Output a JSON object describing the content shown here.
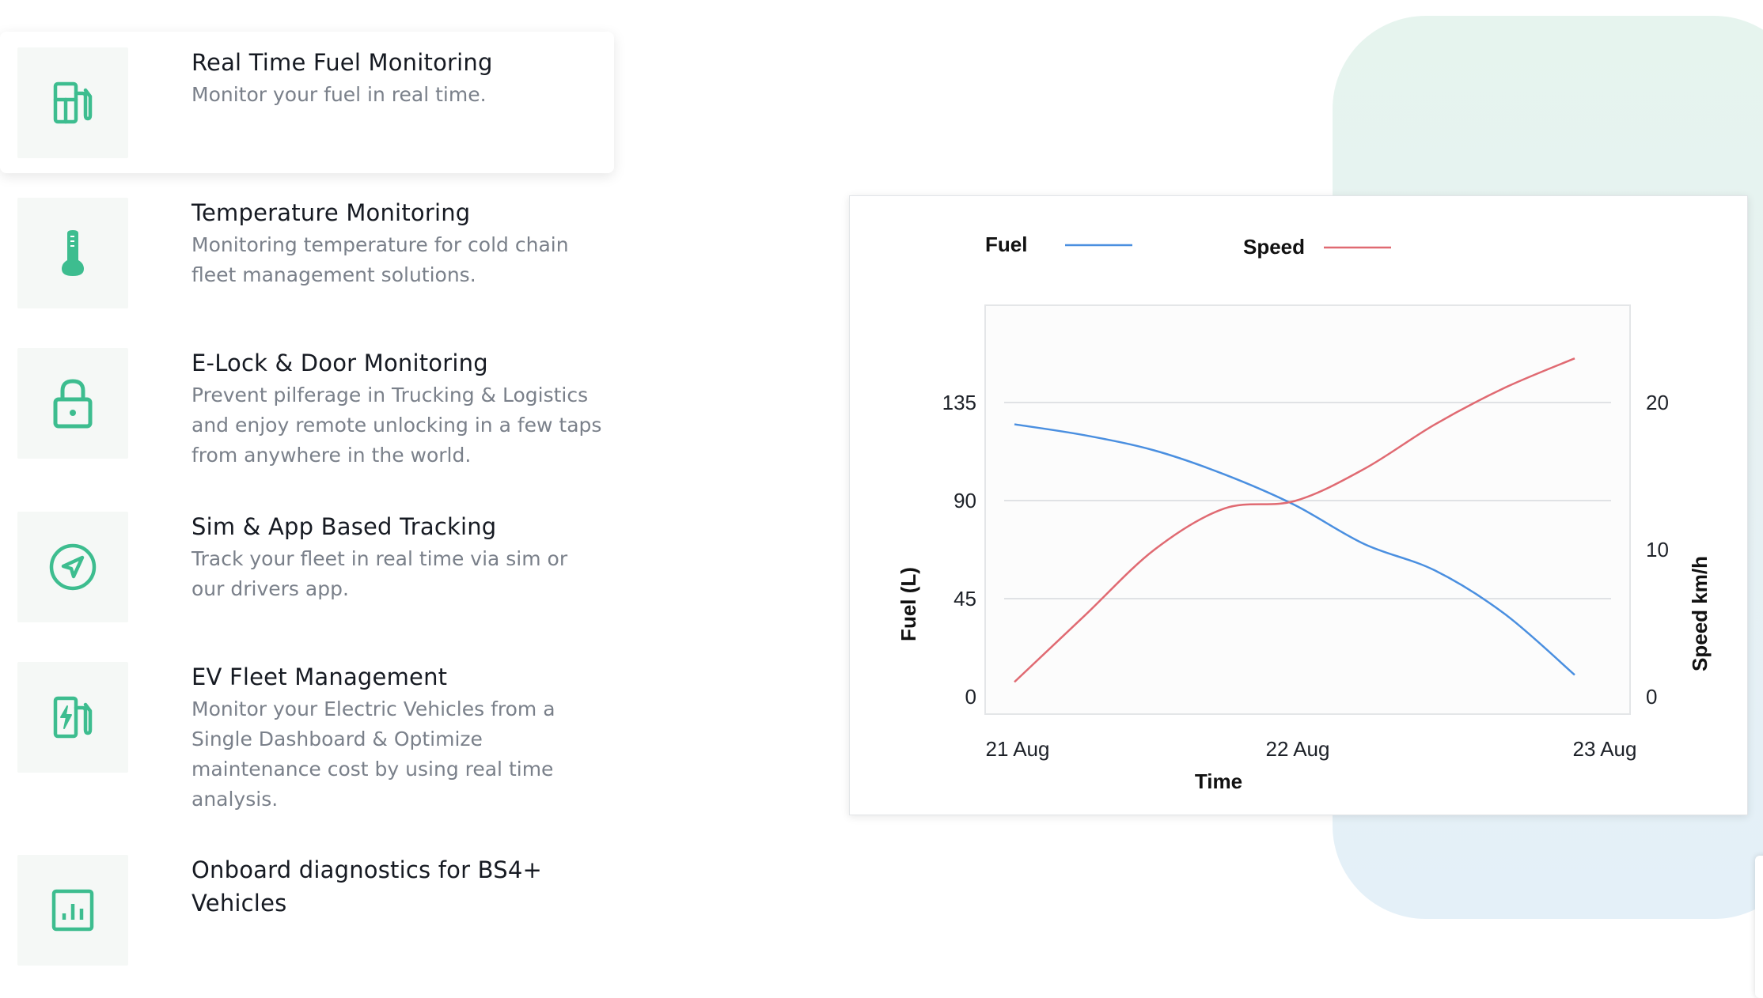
{
  "features": [
    {
      "title": "Real Time Fuel Monitoring",
      "description": "Monitor your fuel in real time.",
      "icon": "fuel-pump-icon"
    },
    {
      "title": "Temperature Monitoring",
      "description": "Monitoring temperature for cold chain fleet management solutions.",
      "icon": "thermometer-icon"
    },
    {
      "title": "E-Lock & Door Monitoring",
      "description": "Prevent pilferage in Trucking & Logistics and enjoy remote unlocking in a few taps from anywhere in the world.",
      "icon": "lock-icon"
    },
    {
      "title": "Sim & App Based Tracking",
      "description": "Track your fleet in real time via sim or our drivers app.",
      "icon": "navigation-icon"
    },
    {
      "title": "EV Fleet Management",
      "description": "Monitor your Electric Vehicles from a Single Dashboard & Optimize maintenance cost by using real time analysis.",
      "icon": "ev-charger-icon"
    },
    {
      "title": "Onboard diagnostics for BS4+ Vehicles",
      "description": "",
      "icon": "bar-chart-icon"
    }
  ],
  "colors": {
    "accent": "#3dbd8f",
    "fuel": "#4a8fe0",
    "speed": "#e06a72"
  },
  "chart_data": {
    "type": "line",
    "x": [
      "21 Aug",
      "22 Aug",
      "23 Aug"
    ],
    "xlabel": "Time",
    "ylabel_left": "Fuel (L)",
    "ylabel_right": "Speed km/h",
    "y_left_ticks": [
      "0",
      "45",
      "90",
      "135"
    ],
    "y_right_ticks": [
      "0",
      "10",
      "20"
    ],
    "y_left_lim": [
      0,
      135
    ],
    "y_right_lim": [
      0,
      20
    ],
    "legend_position": "top",
    "grid": true,
    "series": [
      {
        "name": "Fuel",
        "axis": "left",
        "color": "#4a8fe0",
        "points": [
          [
            0.0,
            125
          ],
          [
            0.25,
            120
          ],
          [
            0.5,
            113
          ],
          [
            0.75,
            102
          ],
          [
            1.0,
            88
          ],
          [
            1.25,
            70
          ],
          [
            1.5,
            58
          ],
          [
            1.75,
            38
          ],
          [
            2.0,
            10
          ]
        ]
      },
      {
        "name": "Speed",
        "axis": "right",
        "color": "#e06a72",
        "points": [
          [
            0.0,
            1
          ],
          [
            0.25,
            5.5
          ],
          [
            0.5,
            10
          ],
          [
            0.75,
            12.8
          ],
          [
            1.0,
            13.3
          ],
          [
            1.25,
            15.5
          ],
          [
            1.5,
            18.5
          ],
          [
            1.75,
            21
          ],
          [
            2.0,
            23
          ]
        ]
      }
    ]
  }
}
